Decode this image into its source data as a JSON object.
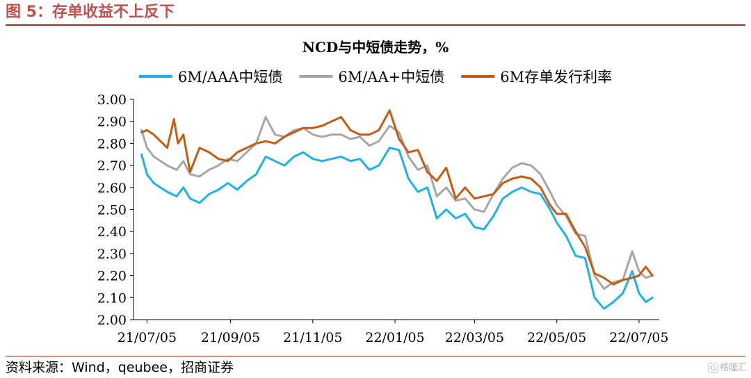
{
  "figure": {
    "title": "图 5：存单收益不上反下",
    "source": "资料来源：Wind，qeubee，招商证券",
    "watermark_icon": "G",
    "watermark_text": "格隆汇"
  },
  "colors": {
    "figure_title": "#c0504d",
    "rule": "#a42e1e"
  },
  "chart_data": {
    "type": "line",
    "title": "NCD与中短债走势，%",
    "xlabel": "",
    "ylabel": "",
    "x_range": [
      "2021-06-25",
      "2022-07-20"
    ],
    "x_ticks": [
      "2021-07-05",
      "2021-09-05",
      "2021-11-05",
      "2022-01-05",
      "2022-03-05",
      "2022-05-05",
      "2022-07-05"
    ],
    "x_tick_labels": [
      "21/07/05",
      "21/09/05",
      "21/11/05",
      "22/01/05",
      "22/03/05",
      "22/05/05",
      "22/07/05"
    ],
    "ylim": [
      2.0,
      3.0
    ],
    "y_ticks": [
      2.0,
      2.1,
      2.2,
      2.3,
      2.4,
      2.5,
      2.6,
      2.7,
      2.8,
      2.9,
      3.0
    ],
    "y_tick_labels": [
      "2.00",
      "2.10",
      "2.20",
      "2.30",
      "2.40",
      "2.50",
      "2.60",
      "2.70",
      "2.80",
      "2.90",
      "3.00"
    ],
    "grid": false,
    "legend_position": "top",
    "series": [
      {
        "name": "6M/AAA中短债",
        "color": "#1ab2e8",
        "x": [
          "2021-07-01",
          "2021-07-05",
          "2021-07-10",
          "2021-07-20",
          "2021-07-27",
          "2021-08-01",
          "2021-08-06",
          "2021-08-13",
          "2021-08-20",
          "2021-08-27",
          "2021-09-03",
          "2021-09-10",
          "2021-09-17",
          "2021-09-24",
          "2021-10-01",
          "2021-10-08",
          "2021-10-15",
          "2021-10-22",
          "2021-10-29",
          "2021-11-05",
          "2021-11-12",
          "2021-11-19",
          "2021-11-26",
          "2021-12-03",
          "2021-12-10",
          "2021-12-17",
          "2021-12-24",
          "2022-01-01",
          "2022-01-08",
          "2022-01-15",
          "2022-01-22",
          "2022-01-29",
          "2022-02-05",
          "2022-02-12",
          "2022-02-19",
          "2022-02-26",
          "2022-03-05",
          "2022-03-12",
          "2022-03-19",
          "2022-03-26",
          "2022-04-02",
          "2022-04-09",
          "2022-04-16",
          "2022-04-23",
          "2022-04-30",
          "2022-05-05",
          "2022-05-12",
          "2022-05-19",
          "2022-05-26",
          "2022-06-02",
          "2022-06-09",
          "2022-06-16",
          "2022-06-23",
          "2022-06-30",
          "2022-07-05",
          "2022-07-10",
          "2022-07-15"
        ],
        "values": [
          2.75,
          2.66,
          2.62,
          2.58,
          2.56,
          2.6,
          2.55,
          2.53,
          2.57,
          2.59,
          2.62,
          2.59,
          2.63,
          2.66,
          2.74,
          2.72,
          2.7,
          2.74,
          2.76,
          2.73,
          2.72,
          2.73,
          2.74,
          2.72,
          2.73,
          2.68,
          2.7,
          2.78,
          2.77,
          2.64,
          2.58,
          2.6,
          2.46,
          2.5,
          2.46,
          2.48,
          2.42,
          2.41,
          2.47,
          2.55,
          2.58,
          2.6,
          2.58,
          2.57,
          2.5,
          2.44,
          2.38,
          2.29,
          2.28,
          2.1,
          2.05,
          2.08,
          2.12,
          2.22,
          2.12,
          2.08,
          2.1
        ]
      },
      {
        "name": "6M/AA+中短债",
        "color": "#a6a6a6",
        "x": [
          "2021-07-01",
          "2021-07-05",
          "2021-07-10",
          "2021-07-20",
          "2021-07-27",
          "2021-08-01",
          "2021-08-06",
          "2021-08-13",
          "2021-08-20",
          "2021-08-27",
          "2021-09-03",
          "2021-09-10",
          "2021-09-17",
          "2021-09-24",
          "2021-10-01",
          "2021-10-08",
          "2021-10-15",
          "2021-10-22",
          "2021-10-29",
          "2021-11-05",
          "2021-11-12",
          "2021-11-19",
          "2021-11-26",
          "2021-12-03",
          "2021-12-10",
          "2021-12-17",
          "2021-12-24",
          "2022-01-01",
          "2022-01-08",
          "2022-01-15",
          "2022-01-22",
          "2022-01-29",
          "2022-02-05",
          "2022-02-12",
          "2022-02-19",
          "2022-02-26",
          "2022-03-05",
          "2022-03-12",
          "2022-03-19",
          "2022-03-26",
          "2022-04-02",
          "2022-04-09",
          "2022-04-16",
          "2022-04-23",
          "2022-04-30",
          "2022-05-05",
          "2022-05-12",
          "2022-05-19",
          "2022-05-26",
          "2022-06-02",
          "2022-06-09",
          "2022-06-16",
          "2022-06-23",
          "2022-06-30",
          "2022-07-05",
          "2022-07-10",
          "2022-07-15"
        ],
        "values": [
          2.86,
          2.78,
          2.74,
          2.7,
          2.68,
          2.72,
          2.66,
          2.65,
          2.68,
          2.7,
          2.73,
          2.72,
          2.76,
          2.8,
          2.92,
          2.84,
          2.83,
          2.86,
          2.87,
          2.84,
          2.83,
          2.84,
          2.84,
          2.82,
          2.83,
          2.79,
          2.81,
          2.88,
          2.85,
          2.74,
          2.68,
          2.7,
          2.56,
          2.6,
          2.54,
          2.55,
          2.5,
          2.49,
          2.57,
          2.64,
          2.69,
          2.71,
          2.7,
          2.66,
          2.58,
          2.52,
          2.47,
          2.39,
          2.38,
          2.2,
          2.14,
          2.17,
          2.18,
          2.31,
          2.22,
          2.19,
          2.2
        ]
      },
      {
        "name": "6M存单发行利率",
        "color": "#c55a11",
        "x": [
          "2021-07-01",
          "2021-07-05",
          "2021-07-10",
          "2021-07-20",
          "2021-07-25",
          "2021-07-28",
          "2021-08-01",
          "2021-08-06",
          "2021-08-13",
          "2021-08-20",
          "2021-08-27",
          "2021-09-03",
          "2021-09-10",
          "2021-09-17",
          "2021-09-24",
          "2021-10-01",
          "2021-10-08",
          "2021-10-15",
          "2021-10-22",
          "2021-10-29",
          "2021-11-05",
          "2021-11-12",
          "2021-11-19",
          "2021-11-26",
          "2021-12-03",
          "2021-12-10",
          "2021-12-17",
          "2021-12-24",
          "2022-01-01",
          "2022-01-08",
          "2022-01-15",
          "2022-01-22",
          "2022-01-29",
          "2022-02-05",
          "2022-02-12",
          "2022-02-19",
          "2022-02-26",
          "2022-03-05",
          "2022-03-12",
          "2022-03-19",
          "2022-03-26",
          "2022-04-02",
          "2022-04-09",
          "2022-04-16",
          "2022-04-23",
          "2022-04-30",
          "2022-05-05",
          "2022-05-12",
          "2022-05-19",
          "2022-05-26",
          "2022-06-02",
          "2022-06-09",
          "2022-06-16",
          "2022-06-23",
          "2022-06-30",
          "2022-07-05",
          "2022-07-10",
          "2022-07-15"
        ],
        "values": [
          2.85,
          2.86,
          2.84,
          2.78,
          2.91,
          2.8,
          2.84,
          2.67,
          2.78,
          2.76,
          2.73,
          2.72,
          2.76,
          2.78,
          2.8,
          2.81,
          2.8,
          2.83,
          2.85,
          2.87,
          2.87,
          2.88,
          2.9,
          2.92,
          2.86,
          2.84,
          2.84,
          2.86,
          2.95,
          2.82,
          2.76,
          2.77,
          2.67,
          2.63,
          2.69,
          2.55,
          2.6,
          2.55,
          2.56,
          2.57,
          2.62,
          2.64,
          2.65,
          2.64,
          2.6,
          2.52,
          2.48,
          2.48,
          2.4,
          2.33,
          2.21,
          2.19,
          2.16,
          2.18,
          2.19,
          2.2,
          2.24,
          2.2
        ]
      }
    ]
  }
}
